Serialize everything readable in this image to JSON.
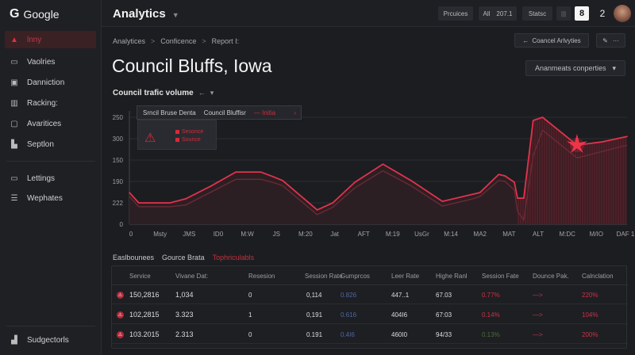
{
  "sidebar": {
    "brand": "Google",
    "items": [
      {
        "label": "lnny",
        "icon": "alert-triangle-icon",
        "active": true
      },
      {
        "label": "Vaolries",
        "icon": "chat-icon"
      },
      {
        "label": "Danniction",
        "icon": "image-icon"
      },
      {
        "label": "Racking:",
        "icon": "building-icon"
      },
      {
        "label": "Avaritices",
        "icon": "comment-icon"
      },
      {
        "label": "Septlon",
        "icon": "bar-chart-icon"
      },
      {
        "label": "Lettings",
        "icon": "screen-icon"
      },
      {
        "label": "Wephates",
        "icon": "list-icon"
      }
    ],
    "footer": {
      "label": "Sudgectorls",
      "icon": "chart-icon"
    }
  },
  "topbar": {
    "title": "Analytics",
    "buttons": {
      "provinces": "Prcuices",
      "all": "All",
      "all_value": "207.1",
      "status": "Statsc"
    },
    "icon_box": "8",
    "notif": "2"
  },
  "breadcrumb": [
    "Analytices",
    "Conficence",
    "Report I:"
  ],
  "page_title": "Council Bluffs, Iowa",
  "actions": {
    "council_activities": "Coancel Arlvyties",
    "more": "···",
    "properties": "Ananmeats conperties"
  },
  "chart_section": {
    "title": "Council trafic volume",
    "arrow": "←"
  },
  "tooltip": {
    "a": "Srncil Bruse Denta",
    "b": "Council Bluffisr",
    "c": "— Initia"
  },
  "legend": [
    {
      "label": "Sesonce"
    },
    {
      "label": "Sounce"
    }
  ],
  "chart_data": {
    "type": "area",
    "title": "Council trafic volume",
    "ytick_labels": [
      "0",
      "222",
      "190",
      "150",
      "300",
      "250"
    ],
    "xtick_labels": [
      "0",
      "Msty",
      "JMS",
      "ID0",
      "M:W",
      "JS",
      "M:20",
      "Jat",
      "AFT",
      "M:19",
      "UsGr",
      "M:14",
      "MA2",
      "MAT",
      "ALT",
      "M:DC",
      "M/IO",
      "DAF 1"
    ],
    "ylim": [
      0,
      5
    ],
    "grid": true,
    "series": [
      {
        "name": "Sesonce",
        "x": [
          0,
          0.3,
          1.3,
          1.8,
          2.6,
          3.4,
          4.2,
          4.6,
          4.9,
          6,
          6.5,
          7.2,
          8.1,
          9,
          10,
          11,
          11.2,
          11.8,
          12,
          12.3,
          12.4,
          12.6,
          12.9,
          13.2,
          14.3,
          15.1,
          15.9
        ],
        "values": [
          1.48,
          1.0,
          1.0,
          1.19,
          1.78,
          2.44,
          2.44,
          2.22,
          2.04,
          0.67,
          1.0,
          1.96,
          2.81,
          2.04,
          1.07,
          1.41,
          1.48,
          2.33,
          2.26,
          1.96,
          1.22,
          1.22,
          4.85,
          5.0,
          3.7,
          3.85,
          4.1
        ]
      },
      {
        "name": "Sounce",
        "x": [
          0,
          0.3,
          1.3,
          1.8,
          2.6,
          3.4,
          4.2,
          4.6,
          4.9,
          6,
          6.5,
          7.2,
          8.1,
          9,
          10,
          11,
          11.2,
          11.8,
          12,
          12.3,
          12.4,
          12.6,
          12.9,
          13.2,
          14.3,
          15.1,
          15.9
        ],
        "values": [
          1.3,
          0.82,
          0.82,
          0.9,
          1.5,
          2.1,
          2.1,
          1.95,
          1.8,
          0.45,
          0.8,
          1.7,
          2.5,
          1.8,
          0.85,
          1.2,
          1.3,
          2.05,
          2.0,
          1.6,
          0.6,
          0.2,
          3.2,
          4.4,
          3.1,
          3.4,
          3.7
        ]
      }
    ],
    "annotation": "spike-marker"
  },
  "tabs": [
    "Easlbounees",
    "Gource Brata",
    "Tophriculabls"
  ],
  "table": {
    "headers": [
      "Service",
      "Vivane Dat:",
      "Resesion",
      "Session Rate",
      "Gumprcos",
      "Leer Rate",
      "Highe Ranl",
      "Session Fate",
      "Dounce Pak.",
      "Calnclation"
    ],
    "rows": [
      [
        "150,2816",
        "1,034",
        "0",
        "0,114",
        "0.826",
        "447..1",
        "67.03",
        "0.77%",
        "—>",
        "220%"
      ],
      [
        "102,2815",
        "3.323",
        "1",
        "0,191",
        "0.616",
        "404I6",
        "67:03",
        "0.14%",
        "—>",
        "104%"
      ],
      [
        "103.2015",
        "2.313",
        "0",
        "0.191",
        "0.4I6",
        "460I0",
        "94/33",
        "0.13%",
        "—>",
        "200%"
      ]
    ]
  }
}
